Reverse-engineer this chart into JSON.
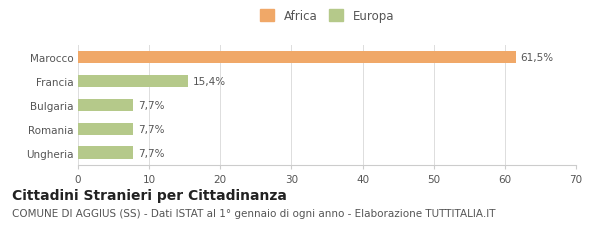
{
  "categories": [
    "Marocco",
    "Francia",
    "Bulgaria",
    "Romania",
    "Ungheria"
  ],
  "values": [
    61.5,
    15.4,
    7.7,
    7.7,
    7.7
  ],
  "bar_colors": [
    "#f0a868",
    "#b5c98a",
    "#b5c98a",
    "#b5c98a",
    "#b5c98a"
  ],
  "labels": [
    "61,5%",
    "15,4%",
    "7,7%",
    "7,7%",
    "7,7%"
  ],
  "legend_entries": [
    "Africa",
    "Europa"
  ],
  "legend_colors": [
    "#f0a868",
    "#b5c98a"
  ],
  "xlim": [
    0,
    70
  ],
  "xticks": [
    0,
    10,
    20,
    30,
    40,
    50,
    60,
    70
  ],
  "title": "Cittadini Stranieri per Cittadinanza",
  "subtitle": "COMUNE DI AGGIUS (SS) - Dati ISTAT al 1° gennaio di ogni anno - Elaborazione TUTTITALIA.IT",
  "background_color": "#ffffff",
  "title_fontsize": 10,
  "subtitle_fontsize": 7.5,
  "label_fontsize": 7.5,
  "tick_fontsize": 7.5,
  "legend_fontsize": 8.5,
  "bar_height": 0.52
}
